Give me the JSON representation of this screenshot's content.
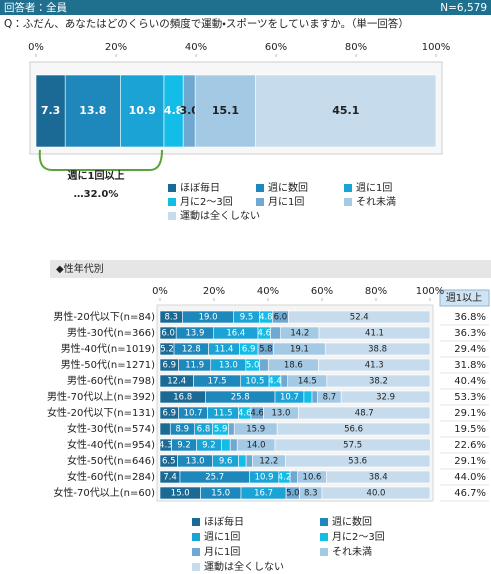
{
  "header": {
    "respondents": "回答者：全員",
    "n": "N=6,579",
    "question": "Q：ふだん、あなたはどのくらいの頻度で運動・スポーツをしていますか。（単一回答）"
  },
  "chart_data": [
    {
      "type": "bar",
      "orientation": "horizontal",
      "stacked": true,
      "categories": [
        null
      ],
      "series": [
        {
          "name": "ほぼ毎日",
          "color": "#1b6a95",
          "values": [
            7.3
          ],
          "value_labels": [
            "7.3"
          ]
        },
        {
          "name": "週に数回",
          "color": "#1e88bd",
          "values": [
            13.8
          ],
          "value_labels": [
            "13.8"
          ]
        },
        {
          "name": "週に1回",
          "color": "#1ba3d6",
          "values": [
            10.9
          ],
          "value_labels": [
            "10.9"
          ]
        },
        {
          "name": "月に2～3回",
          "color": "#14bde8",
          "values": [
            4.8
          ],
          "value_labels": [
            "4.8"
          ]
        },
        {
          "name": "月に1回",
          "color": "#6fa9d2",
          "values": [
            3.0
          ],
          "value_labels": [
            "3.0"
          ]
        },
        {
          "name": "それ未満",
          "color": "#a4c9e4",
          "values": [
            15.1
          ],
          "value_labels": [
            "15.1"
          ]
        },
        {
          "name": "運動は全くしない",
          "color": "#c6dced",
          "values": [
            45.1
          ],
          "value_labels": [
            "45.1"
          ]
        }
      ],
      "xlim": [
        0,
        100
      ],
      "xticks": [
        {
          "value": 0,
          "label": "0%"
        },
        {
          "value": 20,
          "label": "20%"
        },
        {
          "value": 40,
          "label": "40%"
        },
        {
          "value": 60,
          "label": "60%"
        },
        {
          "value": 80,
          "label": "80%"
        },
        {
          "value": 100,
          "label": "100%"
        }
      ],
      "grid": false,
      "annotations": [
        "週に1回以上",
        "…32.0%"
      ]
    },
    {
      "type": "bar",
      "orientation": "horizontal",
      "stacked": true,
      "title": "◆性年代別",
      "categories": [
        "男性-20代以下(n=84)",
        "男性-30代(n=366)",
        "男性-40代(n=1019)",
        "男性-50代(n=1271)",
        "男性-60代(n=798)",
        "男性-70代以上(n=392)",
        "女性-20代以下(n=131)",
        "女性-30代(n=574)",
        "女性-40代(n=954)",
        "女性-50代(n=646)",
        "女性-60代(n=284)",
        "女性-70代以上(n=60)"
      ],
      "series": [
        {
          "name": "ほぼ毎日",
          "color": "#1b6a95",
          "values": [
            8.3,
            6.0,
            5.2,
            6.9,
            12.4,
            16.8,
            6.9,
            3.8,
            4.3,
            6.5,
            7.4,
            15.0
          ],
          "value_labels": [
            "8.3",
            "6.0",
            "5.2",
            "6.9",
            "12.4",
            "16.8",
            "6.9",
            null,
            "4.3",
            "6.5",
            "7.4",
            "15.0"
          ]
        },
        {
          "name": "週に数回",
          "color": "#1e88bd",
          "values": [
            19.0,
            13.9,
            12.8,
            11.9,
            17.5,
            25.8,
            10.7,
            8.9,
            9.2,
            13.0,
            25.7,
            15.0
          ],
          "value_labels": [
            "19.0",
            "13.9",
            "12.8",
            "11.9",
            "17.5",
            "25.8",
            "10.7",
            "8.9",
            "9.2",
            "13.0",
            "25.7",
            "15.0"
          ]
        },
        {
          "name": "週に1回",
          "color": "#1ba3d6",
          "values": [
            9.5,
            16.4,
            11.4,
            13.0,
            10.5,
            10.7,
            11.5,
            6.8,
            9.2,
            9.6,
            10.9,
            16.7
          ],
          "value_labels": [
            "9.5",
            "16.4",
            "11.4",
            "13.0",
            "10.5",
            "10.7",
            "11.5",
            "6.8",
            "9.2",
            "9.6",
            "10.9",
            "16.7"
          ]
        },
        {
          "name": "月に2～3回",
          "color": "#14bde8",
          "values": [
            4.8,
            4.6,
            6.9,
            5.0,
            4.4,
            3.0,
            4.6,
            5.9,
            3.3,
            2.8,
            4.2,
            0
          ],
          "value_labels": [
            "4.8",
            "4.6",
            "6.9",
            "5.0",
            "4.4",
            null,
            "4.6",
            "5.9",
            null,
            null,
            "4.2",
            null
          ]
        },
        {
          "name": "月に1回",
          "color": "#6fa9d2",
          "values": [
            6.0,
            3.8,
            5.8,
            3.3,
            2.5,
            2.1,
            4.6,
            2.1,
            2.6,
            2.3,
            2.8,
            5.0
          ],
          "value_labels": [
            "6.0",
            null,
            "5.8",
            null,
            null,
            null,
            "4.6",
            null,
            null,
            null,
            null,
            "5.0"
          ]
        },
        {
          "name": "それ未満",
          "color": "#a4c9e4",
          "values": [
            0,
            14.2,
            19.1,
            18.6,
            14.5,
            8.7,
            13.0,
            15.9,
            14.0,
            12.2,
            10.6,
            8.3
          ],
          "value_labels": [
            null,
            "14.2",
            "19.1",
            "18.6",
            "14.5",
            "8.7",
            "13.0",
            "15.9",
            "14.0",
            "12.2",
            "10.6",
            "8.3"
          ]
        },
        {
          "name": "運動は全くしない",
          "color": "#c6dced",
          "values": [
            52.4,
            41.1,
            38.8,
            41.3,
            38.2,
            32.9,
            48.7,
            56.6,
            57.5,
            53.6,
            38.4,
            40.0
          ],
          "value_labels": [
            "52.4",
            "41.1",
            "38.8",
            "41.3",
            "38.2",
            "32.9",
            "48.7",
            "56.6",
            "57.5",
            "53.6",
            "38.4",
            "40.0"
          ]
        }
      ],
      "xlim": [
        0,
        100
      ],
      "xticks": [
        {
          "value": 0,
          "label": "0%"
        },
        {
          "value": 20,
          "label": "20%"
        },
        {
          "value": 40,
          "label": "40%"
        },
        {
          "value": 60,
          "label": "60%"
        },
        {
          "value": 80,
          "label": "80%"
        },
        {
          "value": 100,
          "label": "100%"
        }
      ],
      "grid": false,
      "summary": {
        "title": "週1以上",
        "values": [
          36.8,
          36.3,
          29.4,
          31.8,
          40.4,
          53.3,
          29.1,
          19.5,
          22.6,
          29.1,
          44.0,
          46.7
        ],
        "value_labels": [
          "36.8%",
          "36.3%",
          "29.4%",
          "31.8%",
          "40.4%",
          "53.3%",
          "29.1%",
          "19.5%",
          "22.6%",
          "29.1%",
          "44.0%",
          "46.7%"
        ]
      }
    }
  ]
}
